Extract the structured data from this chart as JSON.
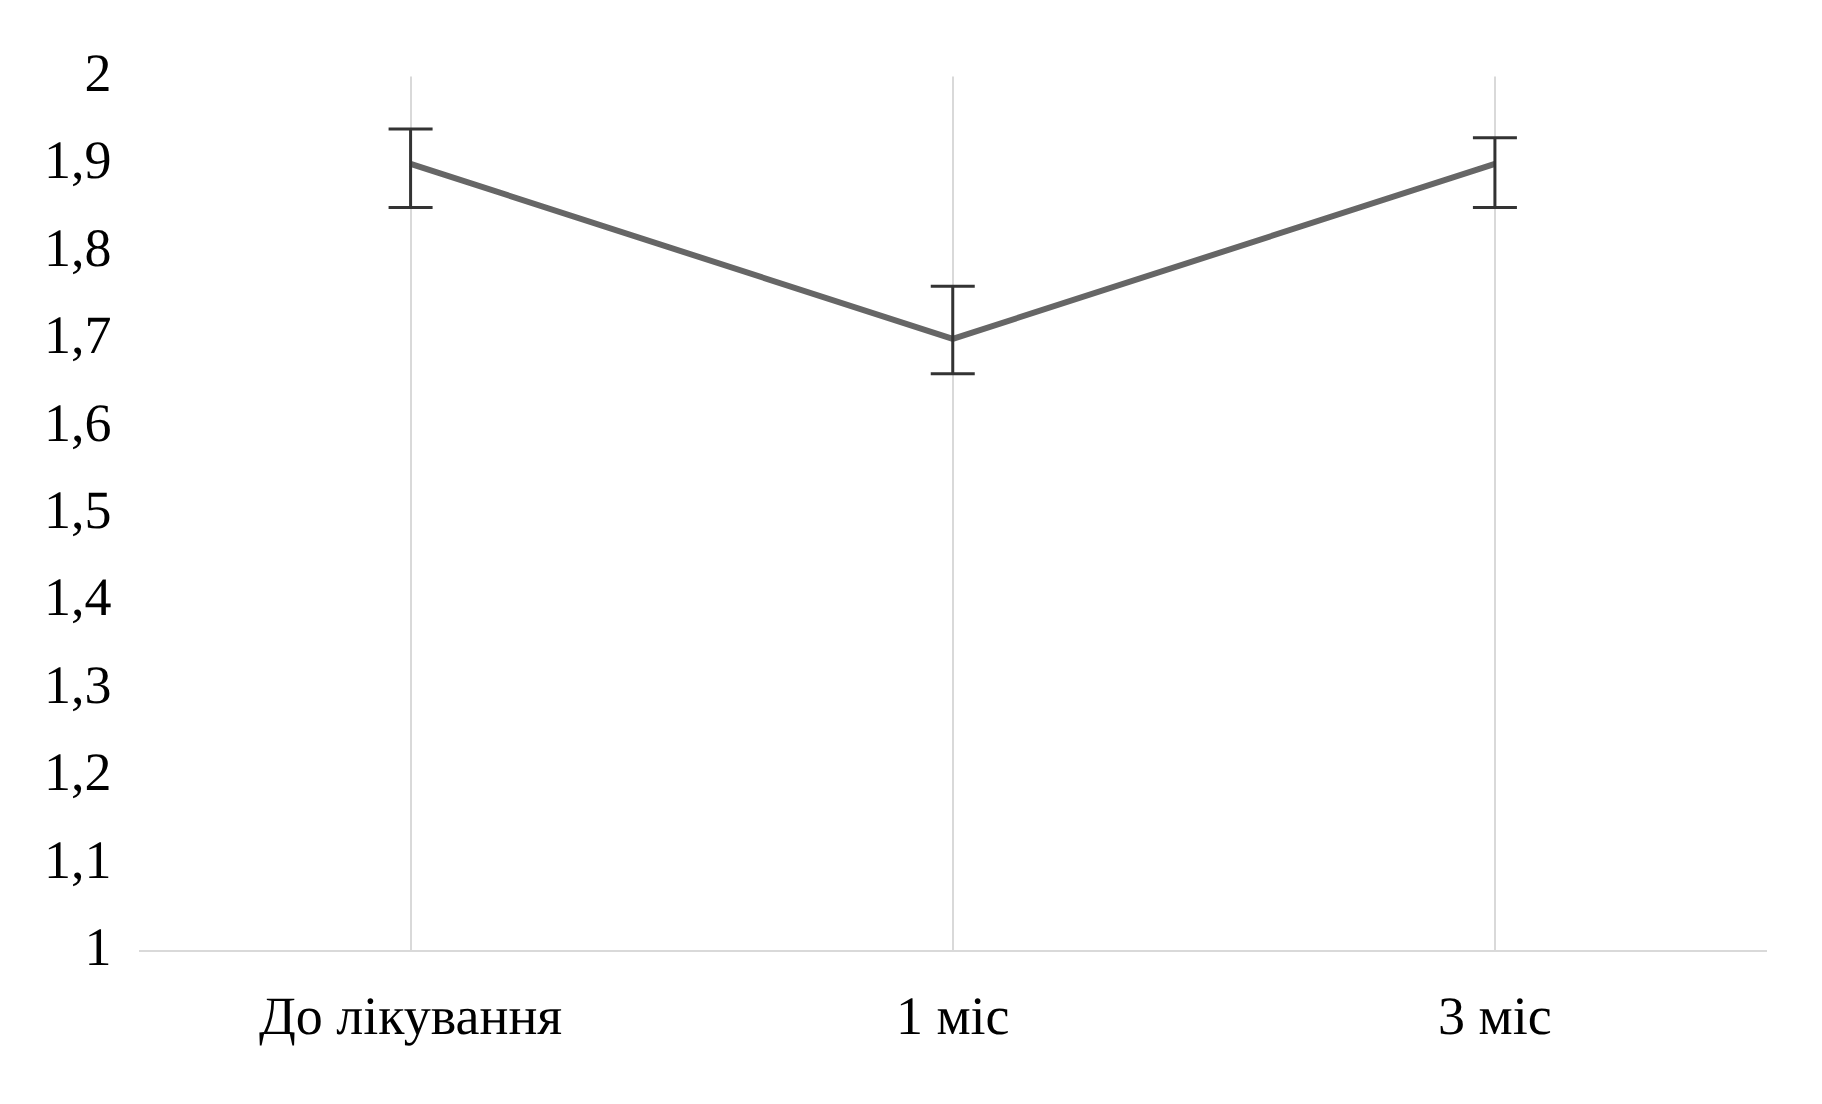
{
  "chart_data": {
    "type": "line",
    "categories": [
      "До лікування",
      "1 міс",
      "3 міс"
    ],
    "series": [
      {
        "color": "#666666",
        "values": [
          1.9,
          1.7,
          1.9
        ],
        "errors": [
          [
            1.85,
            1.94
          ],
          [
            1.66,
            1.76
          ],
          [
            1.85,
            1.93
          ]
        ]
      }
    ],
    "ylim": [
      1,
      2
    ],
    "yticks": [
      {
        "value": 1,
        "label": "1"
      },
      {
        "value": 1.1,
        "label": "1,1"
      },
      {
        "value": 1.2,
        "label": "1,2"
      },
      {
        "value": 1.3,
        "label": "1,3"
      },
      {
        "value": 1.4,
        "label": "1,4"
      },
      {
        "value": 1.5,
        "label": "1,5"
      },
      {
        "value": 1.6,
        "label": "1,6"
      },
      {
        "value": 1.7,
        "label": "1,7"
      },
      {
        "value": 1.8,
        "label": "1,8"
      },
      {
        "value": 1.9,
        "label": "1,9"
      },
      {
        "value": 2,
        "label": "2"
      }
    ],
    "grid": "x",
    "legend": false,
    "marker": "none",
    "line_style": "solid"
  }
}
